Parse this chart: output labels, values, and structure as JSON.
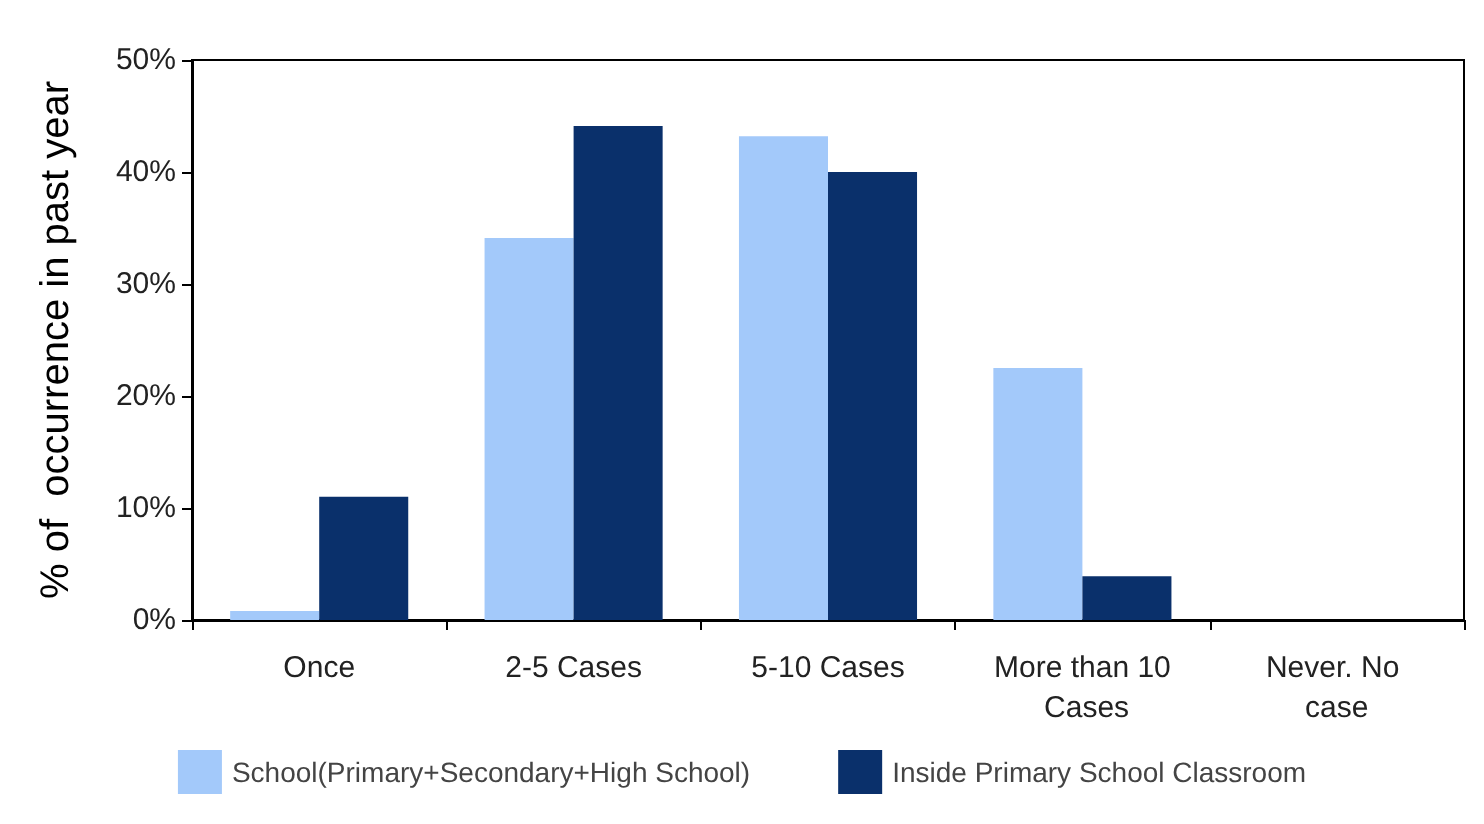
{
  "chart_data": {
    "type": "bar",
    "ylabel": "% of  occurrence in past year",
    "categories": [
      "Once",
      "2-5 Cases",
      "5-10 Cases",
      "More than 10 Cases",
      "Never. No case"
    ],
    "series": [
      {
        "name": "School(Primary+Secondary+High School)",
        "color": "#a3c9fa",
        "values": [
          0.8,
          34.1,
          43.2,
          22.5,
          0
        ]
      },
      {
        "name": "Inside Primary School Classroom",
        "color": "#0a306b",
        "values": [
          11,
          44.1,
          40,
          3.9,
          0
        ]
      }
    ],
    "ylim": [
      0,
      50
    ],
    "yticks": [
      {
        "value": 0,
        "label": "0%"
      },
      {
        "value": 10,
        "label": "10%"
      },
      {
        "value": 20,
        "label": "20%"
      },
      {
        "value": 30,
        "label": "30%"
      },
      {
        "value": 40,
        "label": "40%"
      },
      {
        "value": 50,
        "label": "50%"
      }
    ],
    "grid": false,
    "legend": "bottom"
  }
}
